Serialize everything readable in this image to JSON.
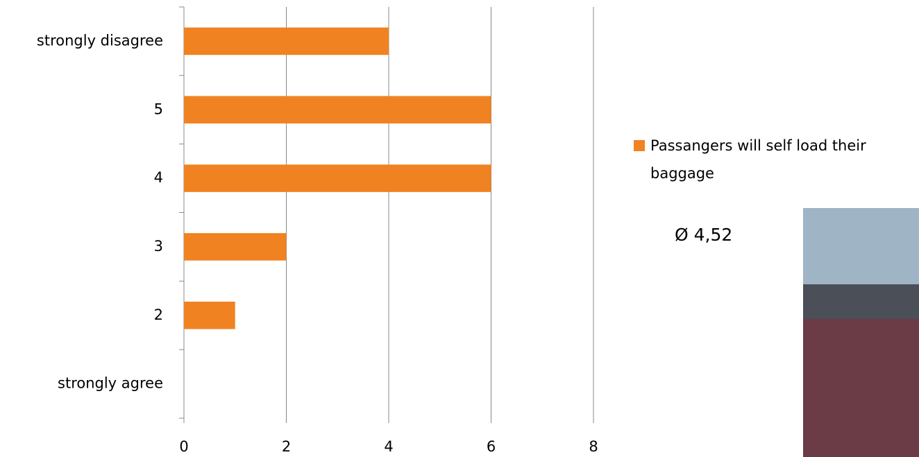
{
  "chart_data": {
    "type": "bar",
    "orientation": "horizontal",
    "categories": [
      "strongly agree",
      "2",
      "3",
      "4",
      "5",
      "strongly disagree"
    ],
    "series": [
      {
        "name": "Passangers will self load their baggage",
        "color": "#f08222",
        "values": [
          0,
          1,
          2,
          6,
          6,
          4
        ]
      }
    ],
    "xlim": [
      0,
      8
    ],
    "xticks": [
      0,
      2,
      4,
      6,
      8
    ],
    "grid": true,
    "legend": "right",
    "annotation": "Ø 4,52"
  }
}
